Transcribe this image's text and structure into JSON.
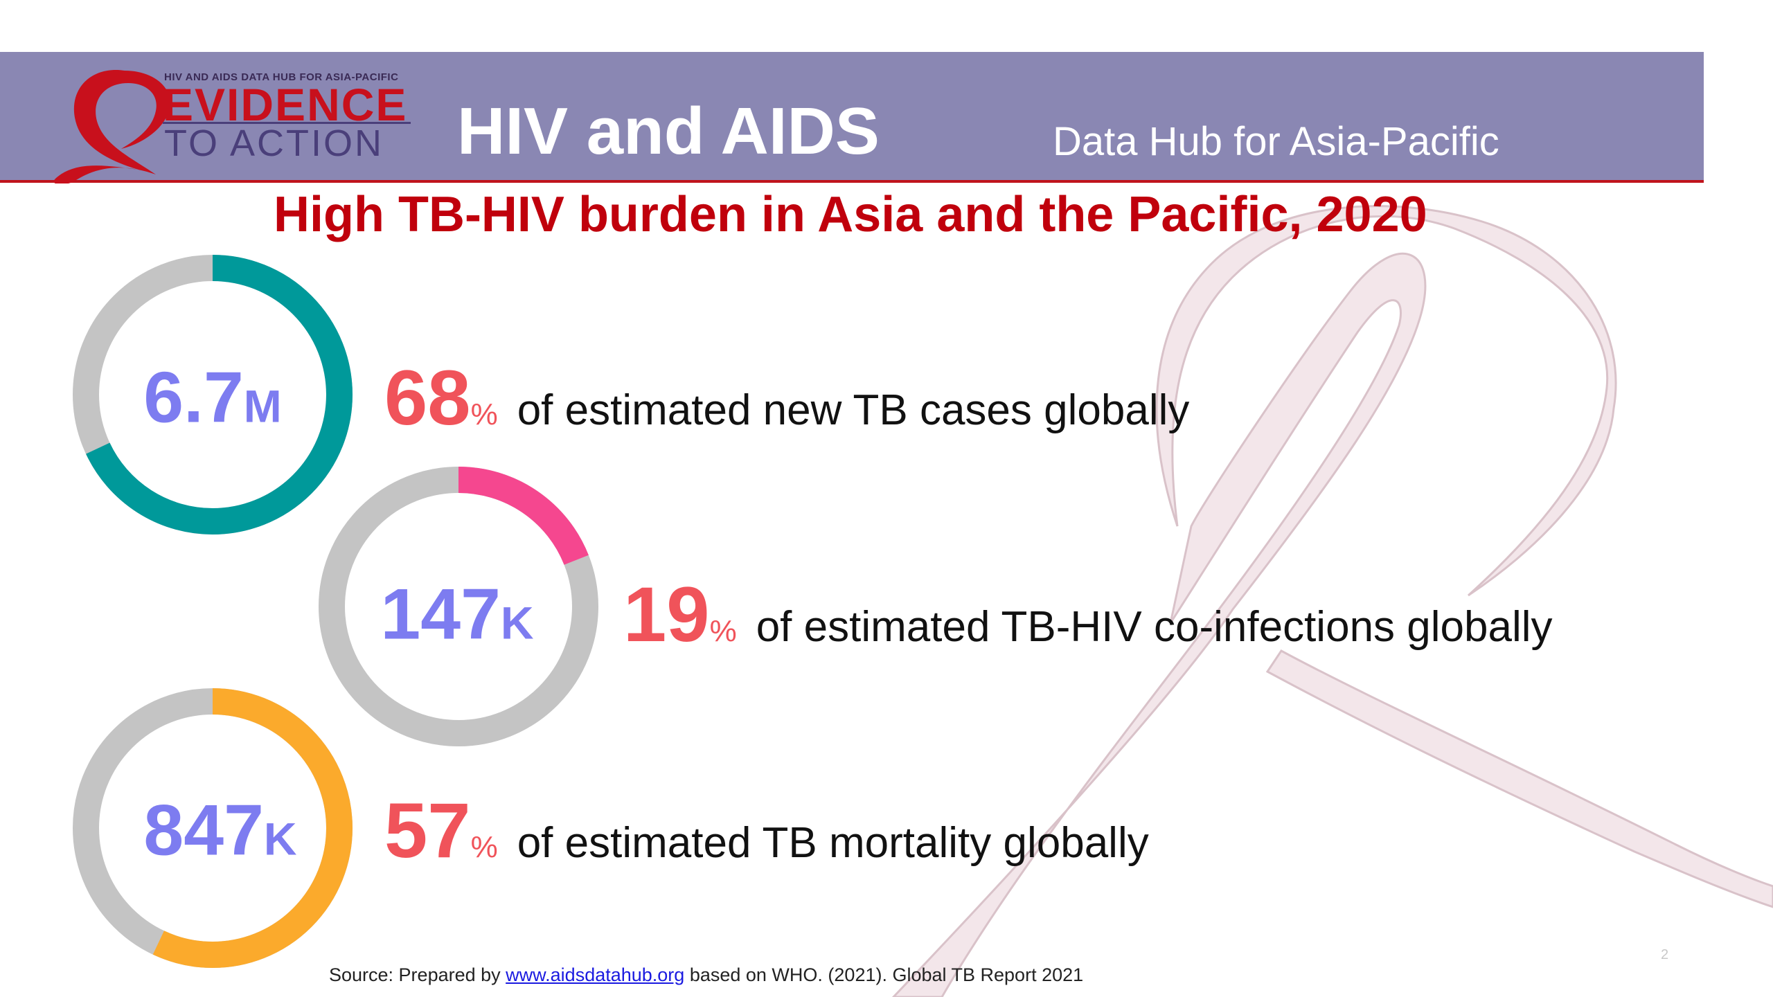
{
  "header": {
    "logo_tagline": "HIV AND AIDS DATA HUB FOR ASIA-PACIFIC",
    "logo_line1": "EVIDENCE",
    "logo_line2": "TO ACTION",
    "title": "HIV and AIDS",
    "subtitle": "Data Hub for Asia-Pacific"
  },
  "colors": {
    "header_band": "#8a87b3",
    "title_red": "#c0000c",
    "ring_gray": "#c4c4c4",
    "teal": "#00999a",
    "pink": "#f5478f",
    "orange": "#fbaa2c",
    "center_value": "#7d7cf0",
    "percent": "#f0535a"
  },
  "chart_data": {
    "type": "donut",
    "title": "High TB-HIV burden in Asia and the Pacific, 2020",
    "items": [
      {
        "value_number": "6.7",
        "value_unit": "M",
        "percent": 68,
        "percent_label": "68",
        "percent_sign": "%",
        "description": "of estimated new TB cases globally",
        "color": "#00999a"
      },
      {
        "value_number": "147",
        "value_unit": "K",
        "percent": 19,
        "percent_label": "19",
        "percent_sign": "%",
        "description": "of estimated TB-HIV co-infections globally",
        "color": "#f5478f"
      },
      {
        "value_number": "847",
        "value_unit": "K",
        "percent": 57,
        "percent_label": "57",
        "percent_sign": "%",
        "description": "of estimated TB mortality globally",
        "color": "#fbaa2c"
      }
    ]
  },
  "footer": {
    "source_prefix": "Source: Prepared by ",
    "source_link": "www.aidsdatahub.org",
    "source_suffix": " based on WHO. (2021). Global TB Report 2021",
    "page_number": "2"
  }
}
